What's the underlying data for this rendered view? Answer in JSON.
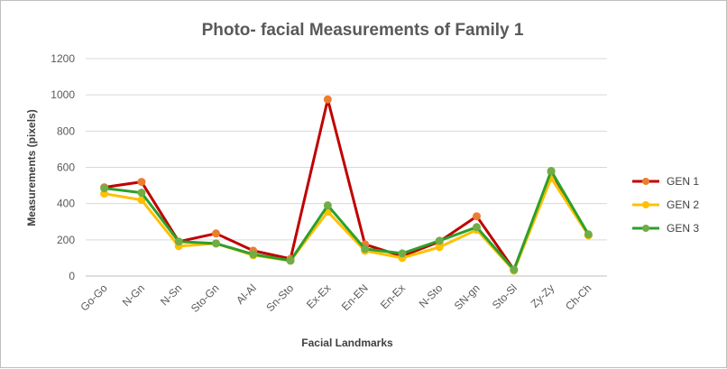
{
  "chart_data": {
    "type": "line",
    "title": "Photo- facial Measurements of Family 1",
    "xlabel": "Facial Landmarks",
    "ylabel": "Measurements (pixels)",
    "ylim": [
      0,
      1200
    ],
    "yticks": [
      0,
      200,
      400,
      600,
      800,
      1000,
      1200
    ],
    "grid": true,
    "legend_position": "right",
    "categories": [
      "Go-Go",
      "N-Gn",
      "N-Sn",
      "Sto-Gn",
      "Al-Al",
      "Sn-Sto",
      "Ex-Ex",
      "En-EN",
      "En-Ex",
      "N-Sto",
      "SN-gn",
      "Sto-Sl",
      "Zy-Zy",
      "Ch-Ch"
    ],
    "series": [
      {
        "name": "GEN 1",
        "line_color": "#c00000",
        "marker_color": "#ed7d31",
        "values": [
          490,
          520,
          190,
          235,
          140,
          95,
          975,
          175,
          110,
          190,
          330,
          35,
          575,
          225
        ]
      },
      {
        "name": "GEN 2",
        "line_color": "#ffc000",
        "marker_color": "#ffc000",
        "values": [
          455,
          420,
          165,
          180,
          115,
          85,
          355,
          140,
          100,
          160,
          255,
          30,
          540,
          225
        ]
      },
      {
        "name": "GEN 3",
        "line_color": "#2ca02c",
        "marker_color": "#70ad47",
        "values": [
          485,
          460,
          190,
          180,
          120,
          85,
          390,
          150,
          125,
          195,
          270,
          35,
          580,
          230
        ]
      }
    ]
  }
}
